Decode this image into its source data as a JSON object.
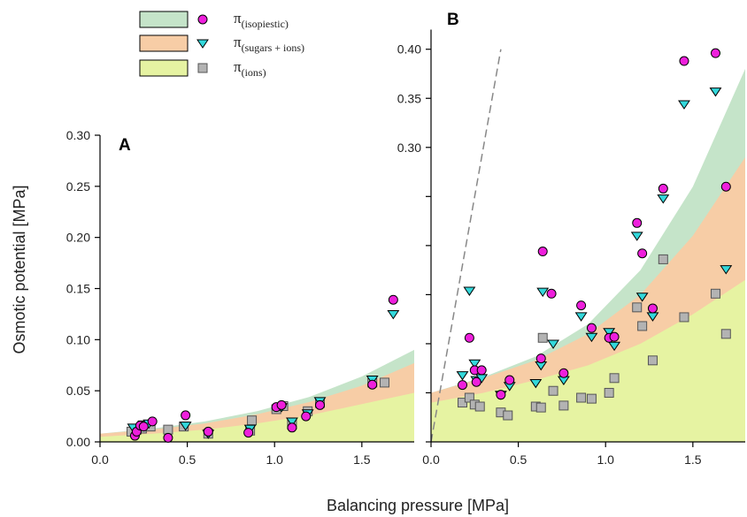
{
  "colors": {
    "isopiestic_band": "#c5e4c9",
    "sugars_ions_band": "#f7cda6",
    "ions_band": "#e6f3a2",
    "isopiestic_marker": "#ee1fdc",
    "sugars_ions_marker": "#33d8db",
    "ions_marker": "#b3b3b3",
    "dash_line": "#888888"
  },
  "legend": [
    {
      "symbol": "π",
      "subscript": "(isopiestic)",
      "marker": "circle",
      "band": "isopiestic"
    },
    {
      "symbol": "π",
      "subscript": "(sugars + ions)",
      "marker": "triangle",
      "band": "sugars_ions"
    },
    {
      "symbol": "π",
      "subscript": "(ions)",
      "marker": "square",
      "band": "ions"
    }
  ],
  "xlabel": "Balancing pressure [MPa]",
  "ylabel": "Osmotic potential [MPa]",
  "chart_data": [
    {
      "panel": "A",
      "type": "scatter",
      "xlim": [
        0,
        1.8
      ],
      "ylim": [
        0,
        0.3
      ],
      "xticks": [
        "0.0",
        "0.5",
        "1.0",
        "1.5"
      ],
      "yticks": [
        "0.00",
        "0.05",
        "0.10",
        "0.15",
        "0.20",
        "0.25",
        "0.30"
      ],
      "bands": {
        "ions_top": [
          [
            0,
            0.005
          ],
          [
            0.3,
            0.008
          ],
          [
            0.6,
            0.012
          ],
          [
            0.9,
            0.018
          ],
          [
            1.2,
            0.026
          ],
          [
            1.5,
            0.037
          ],
          [
            1.8,
            0.048
          ]
        ],
        "sugars_ions_top": [
          [
            0,
            0.008
          ],
          [
            0.3,
            0.012
          ],
          [
            0.6,
            0.018
          ],
          [
            0.9,
            0.027
          ],
          [
            1.2,
            0.039
          ],
          [
            1.5,
            0.055
          ],
          [
            1.8,
            0.077
          ]
        ],
        "isopiestic_top": [
          [
            0,
            0.008
          ],
          [
            0.3,
            0.013
          ],
          [
            0.6,
            0.02
          ],
          [
            0.9,
            0.03
          ],
          [
            1.2,
            0.044
          ],
          [
            1.5,
            0.064
          ],
          [
            1.8,
            0.09
          ]
        ]
      },
      "series": [
        {
          "name": "π(isopiestic)",
          "marker": "circle",
          "points": [
            [
              0.2,
              0.006
            ],
            [
              0.21,
              0.01
            ],
            [
              0.23,
              0.016
            ],
            [
              0.25,
              0.015
            ],
            [
              0.3,
              0.02
            ],
            [
              0.39,
              0.004
            ],
            [
              0.49,
              0.026
            ],
            [
              0.62,
              0.01
            ],
            [
              0.85,
              0.009
            ],
            [
              1.01,
              0.034
            ],
            [
              1.04,
              0.036
            ],
            [
              1.1,
              0.014
            ],
            [
              1.18,
              0.025
            ],
            [
              1.26,
              0.036
            ],
            [
              1.56,
              0.056
            ],
            [
              1.68,
              0.139
            ]
          ]
        },
        {
          "name": "π(sugars + ions)",
          "marker": "triangle",
          "points": [
            [
              0.19,
              0.014
            ],
            [
              0.25,
              0.017
            ],
            [
              0.28,
              0.018
            ],
            [
              0.49,
              0.016
            ],
            [
              0.62,
              0.008
            ],
            [
              0.86,
              0.013
            ],
            [
              1.04,
              0.034
            ],
            [
              1.1,
              0.02
            ],
            [
              1.19,
              0.028
            ],
            [
              1.26,
              0.04
            ],
            [
              1.56,
              0.061
            ],
            [
              1.68,
              0.125
            ]
          ]
        },
        {
          "name": "π(ions)",
          "marker": "square",
          "points": [
            [
              0.18,
              0.01
            ],
            [
              0.21,
              0.012
            ],
            [
              0.24,
              0.013
            ],
            [
              0.29,
              0.015
            ],
            [
              0.39,
              0.012
            ],
            [
              0.48,
              0.015
            ],
            [
              0.62,
              0.008
            ],
            [
              0.86,
              0.011
            ],
            [
              0.87,
              0.021
            ],
            [
              1.01,
              0.032
            ],
            [
              1.05,
              0.035
            ],
            [
              1.1,
              0.017
            ],
            [
              1.19,
              0.03
            ],
            [
              1.26,
              0.038
            ],
            [
              1.56,
              0.058
            ],
            [
              1.63,
              0.058
            ]
          ]
        }
      ]
    },
    {
      "panel": "B",
      "type": "scatter",
      "xlim": [
        0,
        1.8
      ],
      "ylim": [
        0,
        0.42
      ],
      "xticks": [
        "0.0",
        "0.5",
        "1.0",
        "1.5"
      ],
      "yticks": [
        "0.30",
        "0.35",
        "0.40"
      ],
      "reference_line": [
        [
          0.0,
          0.0
        ],
        [
          0.4,
          0.4
        ]
      ],
      "bands": {
        "ions_top": [
          [
            0,
            0.04
          ],
          [
            0.3,
            0.05
          ],
          [
            0.6,
            0.063
          ],
          [
            0.9,
            0.078
          ],
          [
            1.2,
            0.1
          ],
          [
            1.5,
            0.13
          ],
          [
            1.8,
            0.165
          ]
        ],
        "sugars_ions_top": [
          [
            0,
            0.05
          ],
          [
            0.3,
            0.065
          ],
          [
            0.6,
            0.083
          ],
          [
            0.9,
            0.11
          ],
          [
            1.2,
            0.15
          ],
          [
            1.5,
            0.21
          ],
          [
            1.8,
            0.29
          ]
        ],
        "isopiestic_top": [
          [
            0,
            0.05
          ],
          [
            0.3,
            0.066
          ],
          [
            0.6,
            0.087
          ],
          [
            0.9,
            0.12
          ],
          [
            1.2,
            0.175
          ],
          [
            1.5,
            0.26
          ],
          [
            1.8,
            0.38
          ]
        ]
      },
      "series": [
        {
          "name": "π(isopiestic)",
          "marker": "circle",
          "points": [
            [
              0.18,
              0.058
            ],
            [
              0.22,
              0.106
            ],
            [
              0.25,
              0.073
            ],
            [
              0.26,
              0.061
            ],
            [
              0.29,
              0.073
            ],
            [
              0.4,
              0.048
            ],
            [
              0.45,
              0.063
            ],
            [
              0.63,
              0.085
            ],
            [
              0.64,
              0.194
            ],
            [
              0.69,
              0.151
            ],
            [
              0.76,
              0.07
            ],
            [
              0.86,
              0.139
            ],
            [
              0.92,
              0.116
            ],
            [
              1.02,
              0.106
            ],
            [
              1.05,
              0.107
            ],
            [
              1.18,
              0.223
            ],
            [
              1.21,
              0.192
            ],
            [
              1.27,
              0.136
            ],
            [
              1.33,
              0.258
            ],
            [
              1.45,
              0.388
            ],
            [
              1.63,
              0.396
            ],
            [
              1.69,
              0.26
            ]
          ]
        },
        {
          "name": "π(sugars + ions)",
          "marker": "triangle",
          "points": [
            [
              0.18,
              0.068
            ],
            [
              0.22,
              0.154
            ],
            [
              0.25,
              0.08
            ],
            [
              0.26,
              0.063
            ],
            [
              0.29,
              0.065
            ],
            [
              0.4,
              0.048
            ],
            [
              0.45,
              0.057
            ],
            [
              0.6,
              0.06
            ],
            [
              0.63,
              0.078
            ],
            [
              0.64,
              0.153
            ],
            [
              0.7,
              0.1
            ],
            [
              0.76,
              0.063
            ],
            [
              0.86,
              0.128
            ],
            [
              0.92,
              0.107
            ],
            [
              1.02,
              0.112
            ],
            [
              1.05,
              0.098
            ],
            [
              1.18,
              0.21
            ],
            [
              1.21,
              0.148
            ],
            [
              1.27,
              0.128
            ],
            [
              1.33,
              0.248
            ],
            [
              1.45,
              0.344
            ],
            [
              1.63,
              0.357
            ],
            [
              1.69,
              0.176
            ]
          ]
        },
        {
          "name": "π(ions)",
          "marker": "square",
          "points": [
            [
              0.18,
              0.04
            ],
            [
              0.22,
              0.045
            ],
            [
              0.25,
              0.038
            ],
            [
              0.28,
              0.036
            ],
            [
              0.4,
              0.03
            ],
            [
              0.44,
              0.027
            ],
            [
              0.6,
              0.036
            ],
            [
              0.63,
              0.035
            ],
            [
              0.64,
              0.106
            ],
            [
              0.7,
              0.052
            ],
            [
              0.76,
              0.037
            ],
            [
              0.86,
              0.045
            ],
            [
              0.92,
              0.044
            ],
            [
              1.02,
              0.05
            ],
            [
              1.05,
              0.065
            ],
            [
              1.18,
              0.137
            ],
            [
              1.21,
              0.118
            ],
            [
              1.27,
              0.083
            ],
            [
              1.33,
              0.186
            ],
            [
              1.45,
              0.127
            ],
            [
              1.63,
              0.151
            ],
            [
              1.69,
              0.11
            ]
          ]
        }
      ]
    }
  ]
}
